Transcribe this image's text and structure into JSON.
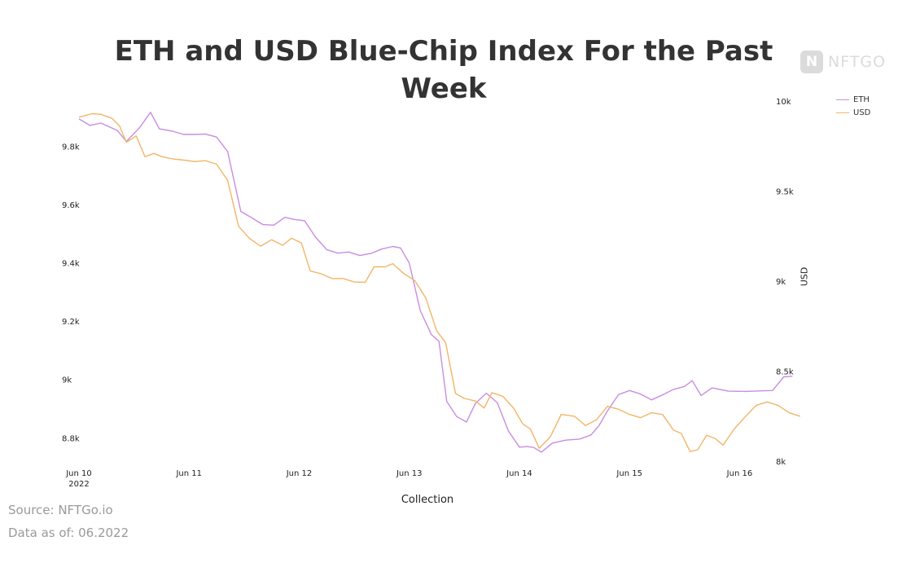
{
  "chart_data": {
    "type": "line",
    "title": "ETH and USD Blue-Chip Index For the Past Week",
    "xlabel": "Collection",
    "ylabel": "",
    "y2label": "USD",
    "x": [
      "Jun 10\n2022",
      "Jun 11",
      "Jun 12",
      "Jun 13",
      "Jun 14",
      "Jun 15",
      "Jun 16"
    ],
    "x_range": [
      0,
      6.3
    ],
    "ylim": [
      8.72,
      9.96
    ],
    "y_ticks": [
      "9.8k",
      "9.6k",
      "9.4k",
      "9.2k",
      "9k",
      "8.8k"
    ],
    "y_tick_values": [
      9.8,
      9.6,
      9.4,
      9.2,
      9.0,
      8.8
    ],
    "y2lim": [
      8000,
      10000
    ],
    "y2_ticks": [
      "10k",
      "9.5k",
      "9k",
      "8.5k",
      "8k"
    ],
    "y2_tick_values": [
      10000,
      9500,
      9000,
      8500,
      8000
    ],
    "grid": false,
    "legend_position": "top-right",
    "series": [
      {
        "name": "ETH",
        "axis": "left",
        "color": "#c98de0",
        "points": [
          [
            0.0,
            9.893
          ],
          [
            0.1,
            9.871
          ],
          [
            0.2,
            9.879
          ],
          [
            0.35,
            9.853
          ],
          [
            0.43,
            9.816
          ],
          [
            0.55,
            9.863
          ],
          [
            0.65,
            9.916
          ],
          [
            0.73,
            9.859
          ],
          [
            0.85,
            9.851
          ],
          [
            0.95,
            9.84
          ],
          [
            1.05,
            9.84
          ],
          [
            1.15,
            9.841
          ],
          [
            1.25,
            9.831
          ],
          [
            1.35,
            9.781
          ],
          [
            1.47,
            9.576
          ],
          [
            1.57,
            9.554
          ],
          [
            1.67,
            9.531
          ],
          [
            1.77,
            9.529
          ],
          [
            1.87,
            9.556
          ],
          [
            1.95,
            9.549
          ],
          [
            2.05,
            9.544
          ],
          [
            2.15,
            9.487
          ],
          [
            2.25,
            9.445
          ],
          [
            2.35,
            9.433
          ],
          [
            2.45,
            9.437
          ],
          [
            2.55,
            9.425
          ],
          [
            2.65,
            9.432
          ],
          [
            2.75,
            9.447
          ],
          [
            2.85,
            9.456
          ],
          [
            2.92,
            9.451
          ],
          [
            3.0,
            9.399
          ],
          [
            3.1,
            9.236
          ],
          [
            3.2,
            9.154
          ],
          [
            3.27,
            9.131
          ],
          [
            3.34,
            8.925
          ],
          [
            3.43,
            8.873
          ],
          [
            3.52,
            8.854
          ],
          [
            3.6,
            8.918
          ],
          [
            3.7,
            8.953
          ],
          [
            3.8,
            8.92
          ],
          [
            3.9,
            8.824
          ],
          [
            4.0,
            8.768
          ],
          [
            4.07,
            8.77
          ],
          [
            4.13,
            8.767
          ],
          [
            4.2,
            8.751
          ],
          [
            4.3,
            8.782
          ],
          [
            4.42,
            8.792
          ],
          [
            4.55,
            8.796
          ],
          [
            4.65,
            8.81
          ],
          [
            4.72,
            8.84
          ],
          [
            4.8,
            8.892
          ],
          [
            4.9,
            8.948
          ],
          [
            5.0,
            8.962
          ],
          [
            5.1,
            8.95
          ],
          [
            5.2,
            8.93
          ],
          [
            5.3,
            8.947
          ],
          [
            5.4,
            8.966
          ],
          [
            5.5,
            8.976
          ],
          [
            5.57,
            8.996
          ],
          [
            5.65,
            8.945
          ],
          [
            5.75,
            8.971
          ],
          [
            5.9,
            8.96
          ],
          [
            6.05,
            8.959
          ],
          [
            6.2,
            8.961
          ],
          [
            6.3,
            8.962
          ],
          [
            6.4,
            9.009
          ],
          [
            6.48,
            9.011
          ]
        ]
      },
      {
        "name": "USD",
        "axis": "left",
        "color": "#f2b568",
        "points": [
          [
            0.0,
            9.899
          ],
          [
            0.12,
            9.911
          ],
          [
            0.2,
            9.909
          ],
          [
            0.3,
            9.895
          ],
          [
            0.37,
            9.868
          ],
          [
            0.43,
            9.813
          ],
          [
            0.52,
            9.835
          ],
          [
            0.6,
            9.763
          ],
          [
            0.68,
            9.775
          ],
          [
            0.75,
            9.764
          ],
          [
            0.85,
            9.756
          ],
          [
            0.95,
            9.752
          ],
          [
            1.05,
            9.747
          ],
          [
            1.15,
            9.75
          ],
          [
            1.25,
            9.738
          ],
          [
            1.35,
            9.682
          ],
          [
            1.45,
            9.525
          ],
          [
            1.55,
            9.483
          ],
          [
            1.65,
            9.457
          ],
          [
            1.75,
            9.479
          ],
          [
            1.85,
            9.46
          ],
          [
            1.93,
            9.484
          ],
          [
            2.02,
            9.468
          ],
          [
            2.1,
            9.372
          ],
          [
            2.2,
            9.362
          ],
          [
            2.3,
            9.346
          ],
          [
            2.4,
            9.346
          ],
          [
            2.5,
            9.334
          ],
          [
            2.6,
            9.333
          ],
          [
            2.68,
            9.386
          ],
          [
            2.78,
            9.386
          ],
          [
            2.85,
            9.397
          ],
          [
            2.95,
            9.363
          ],
          [
            3.05,
            9.339
          ],
          [
            3.15,
            9.279
          ],
          [
            3.25,
            9.166
          ],
          [
            3.33,
            9.127
          ],
          [
            3.42,
            8.952
          ],
          [
            3.5,
            8.935
          ],
          [
            3.6,
            8.926
          ],
          [
            3.68,
            8.902
          ],
          [
            3.75,
            8.955
          ],
          [
            3.85,
            8.942
          ],
          [
            3.95,
            8.9
          ],
          [
            4.03,
            8.848
          ],
          [
            4.1,
            8.83
          ],
          [
            4.18,
            8.764
          ],
          [
            4.28,
            8.803
          ],
          [
            4.38,
            8.88
          ],
          [
            4.5,
            8.874
          ],
          [
            4.6,
            8.842
          ],
          [
            4.7,
            8.862
          ],
          [
            4.8,
            8.908
          ],
          [
            4.9,
            8.898
          ],
          [
            5.0,
            8.88
          ],
          [
            5.1,
            8.869
          ],
          [
            5.2,
            8.886
          ],
          [
            5.3,
            8.88
          ],
          [
            5.4,
            8.826
          ],
          [
            5.47,
            8.815
          ],
          [
            5.55,
            8.753
          ],
          [
            5.62,
            8.759
          ],
          [
            5.7,
            8.809
          ],
          [
            5.78,
            8.797
          ],
          [
            5.85,
            8.775
          ],
          [
            5.95,
            8.83
          ],
          [
            6.05,
            8.872
          ],
          [
            6.15,
            8.911
          ],
          [
            6.25,
            8.923
          ],
          [
            6.35,
            8.911
          ],
          [
            6.45,
            8.886
          ],
          [
            6.55,
            8.874
          ]
        ]
      }
    ]
  },
  "watermark": "NFTGO",
  "footer": {
    "source": "Source: NFTGo.io",
    "date": "Data as of: 06.2022"
  }
}
